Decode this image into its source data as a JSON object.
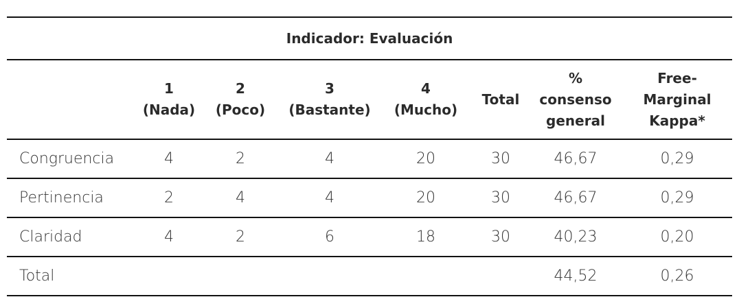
{
  "table": {
    "title": "Indicador: Evaluación",
    "columns": [
      [
        "1",
        "(Nada)"
      ],
      [
        "2",
        "(Poco)"
      ],
      [
        "3",
        "(Bastante)"
      ],
      [
        "4",
        "(Mucho)"
      ],
      [
        "Total"
      ],
      [
        "%",
        "consenso",
        "general"
      ],
      [
        "Free-",
        "Marginal",
        "Kappa*"
      ]
    ],
    "rows": [
      [
        "Congruencia",
        "4",
        "2",
        "4",
        "20",
        "30",
        "46,67",
        "0,29"
      ],
      [
        "Pertinencia",
        "2",
        "4",
        "4",
        "20",
        "30",
        "46,67",
        "0,29"
      ],
      [
        "Claridad",
        "4",
        "2",
        "6",
        "18",
        "30",
        "40,23",
        "0,20"
      ],
      [
        "Total",
        null,
        null,
        null,
        null,
        null,
        "44,52",
        "0,26"
      ]
    ]
  }
}
